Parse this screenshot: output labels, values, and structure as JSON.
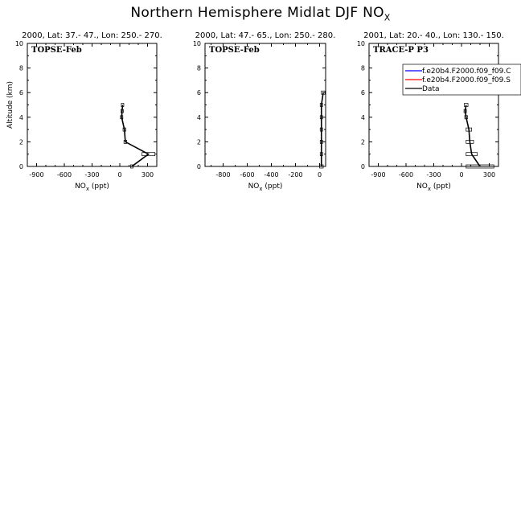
{
  "page": {
    "title_main": "Northern Hemisphere Midlat DJF NO",
    "title_sub": "X"
  },
  "chart_data": [
    {
      "type": "line",
      "title": "2000, Lat: 37.- 47., Lon: 250.- 270.",
      "label": "TOPSE-Feb",
      "xlabel_main": "NO",
      "xlabel_sub": "x",
      "xlabel_unit": " (ppt)",
      "ylabel": "Altitude (km)",
      "xlim": [
        -1000,
        400
      ],
      "ylim": [
        0,
        10
      ],
      "xticks": [
        -900,
        -600,
        -300,
        0,
        300
      ],
      "yticks": [
        0,
        2,
        4,
        6,
        8,
        10
      ],
      "series": [
        {
          "color": "#000000",
          "x": [
            130,
            310,
            60,
            50,
            20,
            25,
            30
          ],
          "y": [
            0,
            1,
            2,
            3,
            4,
            4.5,
            5
          ],
          "box_w": [
            20,
            140,
            30,
            30,
            20,
            20,
            20
          ]
        }
      ]
    },
    {
      "type": "line",
      "title": "2000, Lat: 47.- 65., Lon: 250.- 280.",
      "label": "TOPSE-Feb",
      "xlabel_main": "NO",
      "xlabel_sub": "x",
      "xlabel_unit": " (ppt)",
      "ylabel": "",
      "xlim": [
        -950,
        50
      ],
      "ylim": [
        0,
        10
      ],
      "xticks": [
        -800,
        -600,
        -400,
        -200,
        0
      ],
      "yticks": [
        0,
        2,
        4,
        6,
        8,
        10
      ],
      "series": [
        {
          "color": "#000000",
          "x": [
            15,
            15,
            15,
            15,
            15,
            15,
            30
          ],
          "y": [
            0,
            1,
            2,
            3,
            4,
            5,
            6
          ],
          "box_w": [
            30,
            20,
            15,
            15,
            15,
            15,
            30
          ]
        }
      ]
    },
    {
      "type": "line",
      "title": "2001, Lat: 20.- 40., Lon: 130.- 150.",
      "label": "TRACE-P P3",
      "xlabel_main": "NO",
      "xlabel_sub": "x",
      "xlabel_unit": " (ppt)",
      "ylabel": "",
      "xlim": [
        -1000,
        400
      ],
      "ylim": [
        0,
        10
      ],
      "xticks": [
        -900,
        -600,
        -300,
        0,
        300
      ],
      "yticks": [
        0,
        2,
        4,
        6,
        8,
        10
      ],
      "legend": {
        "placement": "top-right",
        "entries": [
          {
            "name": "f.e20b4.F2000.f09_f09.C",
            "color": "#0000ff"
          },
          {
            "name": "f.e20b4.F2000.f09_f09.S",
            "color": "#ff0000"
          },
          {
            "name": "Data",
            "color": "#000000"
          }
        ]
      },
      "series": [
        {
          "color": "#000000",
          "x": [
            200,
            110,
            90,
            80,
            50,
            40,
            50
          ],
          "y": [
            0,
            1,
            2,
            3,
            4,
            4.5,
            5
          ],
          "box_w": [
            300,
            120,
            80,
            60,
            30,
            20,
            40
          ]
        }
      ]
    }
  ]
}
